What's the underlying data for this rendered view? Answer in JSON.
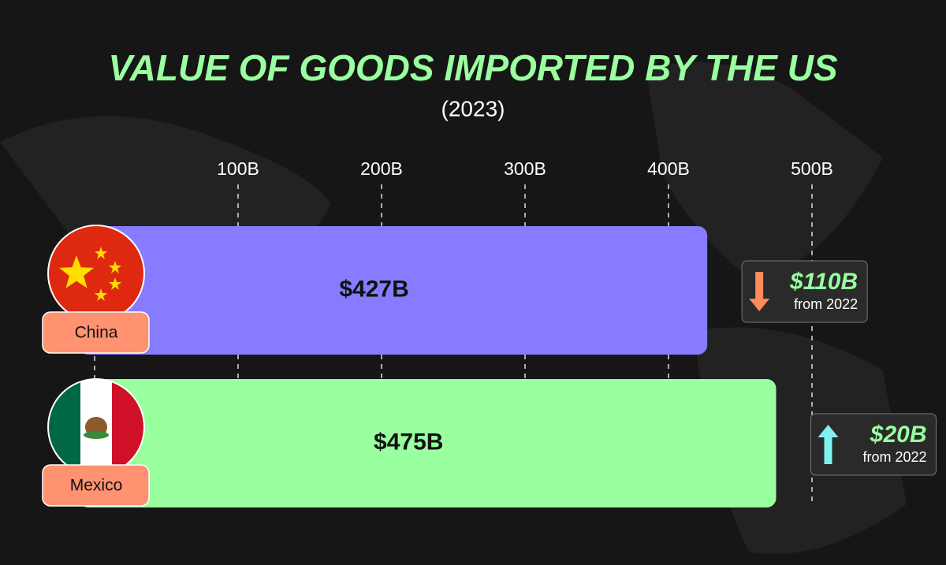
{
  "chart_data": {
    "type": "bar",
    "orientation": "horizontal",
    "title": "VALUE OF GOODS IMPORTED BY THE US",
    "subtitle": "(2023)",
    "categories": [
      "China",
      "Mexico"
    ],
    "values": [
      427,
      475
    ],
    "value_labels": [
      "$427B",
      "$475B"
    ],
    "colors": [
      "#877cff",
      "#99ff9f"
    ],
    "xlim": [
      0,
      500
    ],
    "xticks": [
      {
        "value": 100,
        "label": "100B"
      },
      {
        "value": 200,
        "label": "200B"
      },
      {
        "value": 300,
        "label": "300B"
      },
      {
        "value": 400,
        "label": "400B"
      },
      {
        "value": 500,
        "label": "500B"
      }
    ],
    "grid": true,
    "changes": [
      -110,
      20
    ],
    "change_labels": [
      "$110B",
      "$20B"
    ],
    "change_note": "from 2022"
  }
}
